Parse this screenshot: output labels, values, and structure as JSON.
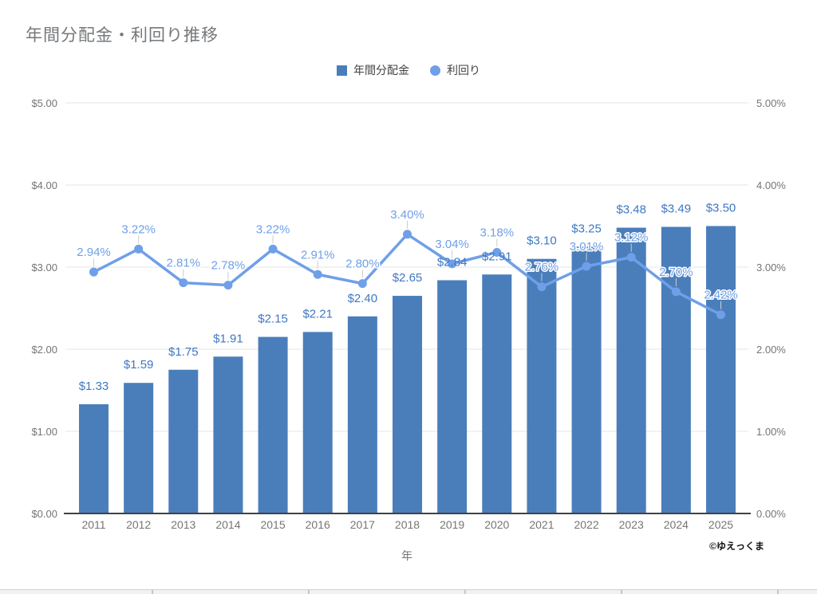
{
  "page": {
    "title": "年間分配金・利回り推移",
    "xlabel": "年",
    "watermark": "©ゆえっくま"
  },
  "legend": {
    "items": [
      {
        "label": "年間分配金",
        "shape": "square"
      },
      {
        "label": "利回り",
        "shape": "circle"
      }
    ]
  },
  "colors": {
    "bar": "#4a7ebb",
    "line": "#6f9fe8",
    "bar_label": "#3d78c4",
    "line_label": "#6f9fe8",
    "axis_text": "#757575",
    "title_text": "#75787b",
    "legend_text": "#424242",
    "gridline": "#e6e6e6",
    "baseline": "#424242",
    "stem": "#cccccc"
  },
  "chart_data": {
    "type": "combo",
    "title": "年間分配金・利回り推移",
    "xlabel": "年",
    "legend_position": "top",
    "grid": true,
    "categories": [
      "2011",
      "2012",
      "2013",
      "2014",
      "2015",
      "2016",
      "2017",
      "2018",
      "2019",
      "2020",
      "2021",
      "2022",
      "2023",
      "2024",
      "2025"
    ],
    "series": [
      {
        "name": "年間分配金",
        "type": "bar",
        "axis": "left",
        "unit": "$",
        "values": [
          1.33,
          1.59,
          1.75,
          1.91,
          2.15,
          2.21,
          2.4,
          2.65,
          2.84,
          2.91,
          3.1,
          3.25,
          3.48,
          3.49,
          3.5
        ],
        "labels": [
          "$1.33",
          "$1.59",
          "$1.75",
          "$1.91",
          "$2.15",
          "$2.21",
          "$2.40",
          "$2.65",
          "$2.84",
          "$2.91",
          "$3.10",
          "$3.25",
          "$3.48",
          "$3.49",
          "$3.50"
        ]
      },
      {
        "name": "利回り",
        "type": "line",
        "axis": "right",
        "unit": "%",
        "values": [
          2.94,
          3.22,
          2.81,
          2.78,
          3.22,
          2.91,
          2.8,
          3.4,
          3.04,
          3.18,
          2.76,
          3.01,
          3.12,
          2.7,
          2.42
        ],
        "labels": [
          "2.94%",
          "3.22%",
          "2.81%",
          "2.78%",
          "3.22%",
          "2.91%",
          "2.80%",
          "3.40%",
          "3.04%",
          "3.18%",
          "2.76%",
          "3.01%",
          "3.12%",
          "2.70%",
          "2.42%"
        ]
      }
    ],
    "left_axis": {
      "ticks": [
        "$0.00",
        "$1.00",
        "$2.00",
        "$3.00",
        "$4.00",
        "$5.00"
      ],
      "range": [
        0,
        5
      ]
    },
    "right_axis": {
      "ticks": [
        "0.00%",
        "1.00%",
        "2.00%",
        "3.00%",
        "4.00%",
        "5.00%"
      ],
      "range": [
        0,
        5
      ]
    }
  }
}
